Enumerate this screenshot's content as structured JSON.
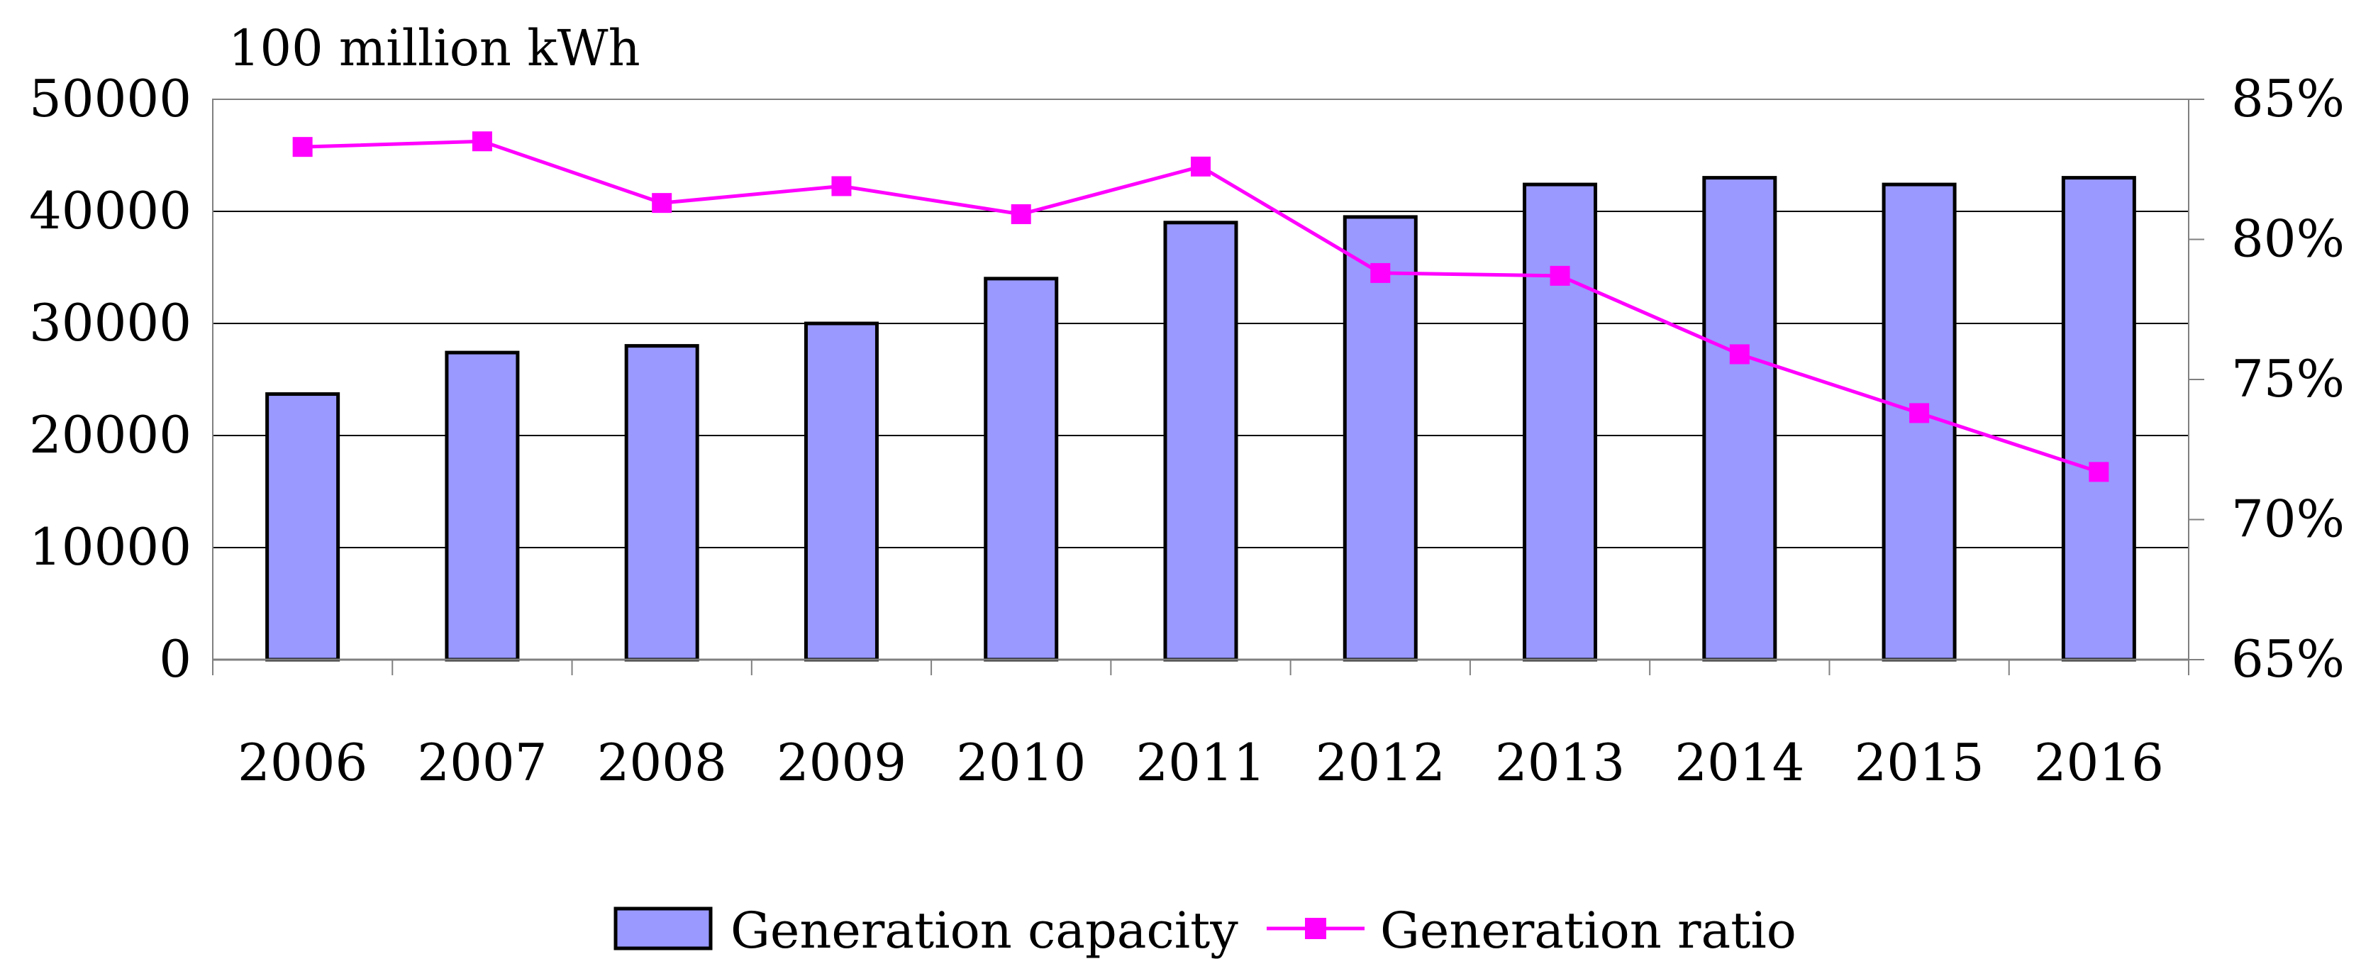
{
  "colors": {
    "bar_fill": "#9999ff",
    "bar_stroke": "#000000",
    "line": "#ff00ff",
    "grid": "#000000",
    "background": "#ffffff"
  },
  "chart_data": {
    "type": "bar",
    "categories": [
      "2006",
      "2007",
      "2008",
      "2009",
      "2010",
      "2011",
      "2012",
      "2013",
      "2014",
      "2015",
      "2016"
    ],
    "series": [
      {
        "name": "Generation capacity",
        "type": "bar",
        "axis": "left",
        "values": [
          23700,
          27400,
          28000,
          30000,
          34000,
          39000,
          39500,
          42400,
          43000,
          42400,
          43000
        ]
      },
      {
        "name": "Generation ratio",
        "type": "line",
        "axis": "right",
        "unit": "%",
        "marker": "square",
        "values": [
          83.3,
          83.5,
          81.3,
          81.9,
          80.9,
          82.6,
          78.8,
          78.7,
          75.9,
          73.8,
          71.7
        ]
      }
    ],
    "y_left": {
      "label": "100 million kWh",
      "min": 0,
      "max": 50000,
      "ticks": [
        "0",
        "10000",
        "20000",
        "30000",
        "40000",
        "50000"
      ]
    },
    "y_right": {
      "min": 65,
      "max": 85,
      "ticks": [
        "65%",
        "70%",
        "75%",
        "80%",
        "85%"
      ]
    },
    "grid": true,
    "legend_position": "bottom"
  }
}
